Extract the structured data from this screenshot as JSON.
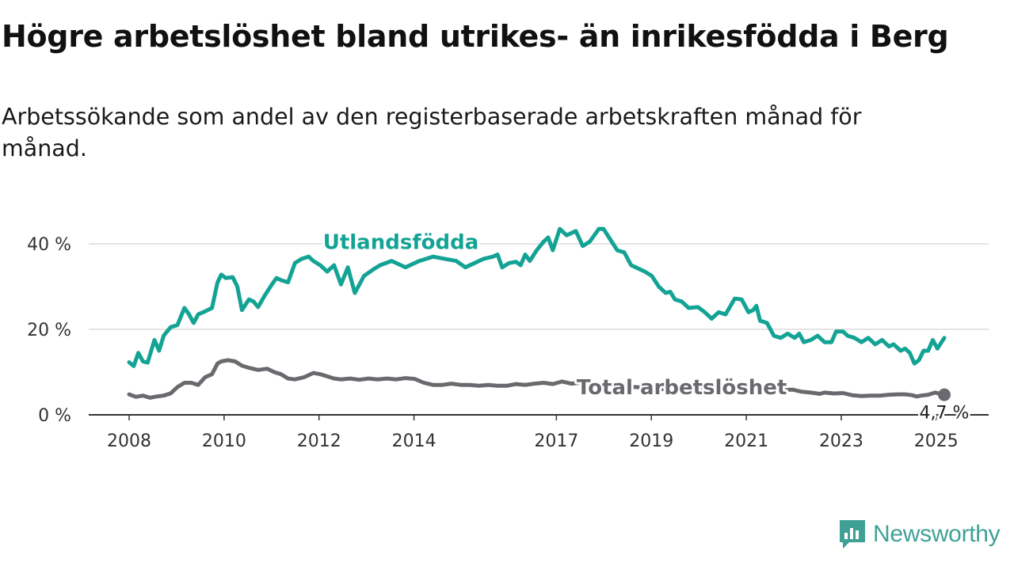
{
  "title": "Högre arbetslöshet bland utrikes- än inrikesfödda i Berg",
  "subtitle": "Arbetssökande som andel av den registerbaserade arbetskraften månad för månad.",
  "brand": {
    "name": "Newsworthy",
    "color": "#3fa196",
    "icon": "newsworthy-logo-icon"
  },
  "chart_data": {
    "type": "line",
    "x_unit": "year (monthly observations)",
    "xlim": [
      2008.0,
      2025.17
    ],
    "ylim": [
      0,
      45
    ],
    "y_ticks": [
      {
        "value": 0,
        "label": "0 %"
      },
      {
        "value": 20,
        "label": "20 %"
      },
      {
        "value": 40,
        "label": "40 %"
      }
    ],
    "x_ticks": [
      {
        "value": 2008,
        "label": "2008"
      },
      {
        "value": 2010,
        "label": "2010"
      },
      {
        "value": 2012,
        "label": "2012"
      },
      {
        "value": 2014,
        "label": "2014"
      },
      {
        "value": 2017,
        "label": "2017"
      },
      {
        "value": 2019,
        "label": "2019"
      },
      {
        "value": 2021,
        "label": "2021"
      },
      {
        "value": 2023,
        "label": "2023"
      },
      {
        "value": 2025,
        "label": "2025"
      }
    ],
    "grid": "horizontal",
    "series": [
      {
        "name": "Utlandsfödda",
        "color": "#13a394",
        "points": [
          [
            2008.0,
            12.3
          ],
          [
            2008.1,
            11.4
          ],
          [
            2008.2,
            14.5
          ],
          [
            2008.3,
            12.5
          ],
          [
            2008.4,
            12.2
          ],
          [
            2008.55,
            17.5
          ],
          [
            2008.65,
            15.0
          ],
          [
            2008.75,
            18.5
          ],
          [
            2008.9,
            20.5
          ],
          [
            2009.05,
            21.0
          ],
          [
            2009.2,
            25.0
          ],
          [
            2009.3,
            23.5
          ],
          [
            2009.4,
            21.5
          ],
          [
            2009.5,
            23.5
          ],
          [
            2009.65,
            24.2
          ],
          [
            2009.8,
            25.0
          ],
          [
            2009.92,
            31.0
          ],
          [
            2010.0,
            32.8
          ],
          [
            2010.1,
            32.0
          ],
          [
            2010.25,
            32.2
          ],
          [
            2010.35,
            30.0
          ],
          [
            2010.45,
            24.5
          ],
          [
            2010.6,
            27.0
          ],
          [
            2010.7,
            26.5
          ],
          [
            2010.8,
            25.2
          ],
          [
            2010.95,
            28.0
          ],
          [
            2011.1,
            30.5
          ],
          [
            2011.2,
            32.0
          ],
          [
            2011.3,
            31.5
          ],
          [
            2011.45,
            31.0
          ],
          [
            2011.6,
            35.5
          ],
          [
            2011.75,
            36.5
          ],
          [
            2011.9,
            37.0
          ],
          [
            2012.0,
            36.0
          ],
          [
            2012.15,
            35.0
          ],
          [
            2012.3,
            33.5
          ],
          [
            2012.45,
            35.0
          ],
          [
            2012.6,
            30.5
          ],
          [
            2012.75,
            34.5
          ],
          [
            2012.9,
            28.5
          ],
          [
            2013.1,
            32.5
          ],
          [
            2013.3,
            34.0
          ],
          [
            2013.45,
            35.0
          ],
          [
            2013.7,
            36.0
          ],
          [
            2014.0,
            34.5
          ],
          [
            2014.3,
            36.0
          ],
          [
            2014.6,
            37.0
          ],
          [
            2014.85,
            36.5
          ],
          [
            2015.1,
            36.0
          ],
          [
            2015.3,
            34.5
          ],
          [
            2015.5,
            35.5
          ],
          [
            2015.7,
            36.5
          ],
          [
            2015.9,
            37.0
          ],
          [
            2016.0,
            37.5
          ],
          [
            2016.1,
            34.5
          ],
          [
            2016.25,
            35.5
          ],
          [
            2016.4,
            35.8
          ],
          [
            2016.5,
            35.0
          ],
          [
            2016.6,
            37.5
          ],
          [
            2016.7,
            36.0
          ],
          [
            2016.85,
            38.5
          ],
          [
            2017.0,
            40.5
          ],
          [
            2017.1,
            41.5
          ],
          [
            2017.2,
            38.5
          ],
          [
            2017.35,
            43.5
          ],
          [
            2017.5,
            42.0
          ],
          [
            2017.6,
            42.5
          ],
          [
            2017.7,
            43.0
          ],
          [
            2017.85,
            39.5
          ],
          [
            2018.0,
            40.5
          ],
          [
            2018.2,
            43.5
          ],
          [
            2018.3,
            43.5
          ],
          [
            2018.45,
            41.0
          ],
          [
            2018.6,
            38.5
          ],
          [
            2018.75,
            38.0
          ],
          [
            2018.9,
            35.0
          ],
          [
            2019.0,
            34.5
          ],
          [
            2019.2,
            33.5
          ],
          [
            2019.35,
            32.5
          ],
          [
            2019.5,
            30.0
          ],
          [
            2019.65,
            28.5
          ],
          [
            2019.75,
            28.8
          ],
          [
            2019.85,
            27.0
          ],
          [
            2020.0,
            26.5
          ],
          [
            2020.15,
            25.0
          ],
          [
            2020.35,
            25.2
          ],
          [
            2020.5,
            24.0
          ],
          [
            2020.65,
            22.5
          ],
          [
            2020.8,
            24.0
          ],
          [
            2020.95,
            23.5
          ],
          [
            2021.15,
            27.2
          ],
          [
            2021.3,
            27.0
          ],
          [
            2021.45,
            24.0
          ],
          [
            2021.55,
            24.5
          ],
          [
            2021.62,
            25.5
          ],
          [
            2021.7,
            22.0
          ],
          [
            2021.85,
            21.5
          ],
          [
            2022.0,
            18.5
          ],
          [
            2022.15,
            18.0
          ],
          [
            2022.3,
            19.0
          ],
          [
            2022.45,
            18.0
          ],
          [
            2022.55,
            19.0
          ],
          [
            2022.65,
            17.0
          ],
          [
            2022.8,
            17.5
          ],
          [
            2022.95,
            18.5
          ],
          [
            2023.1,
            17.0
          ],
          [
            2023.25,
            17.0
          ],
          [
            2023.35,
            19.5
          ],
          [
            2023.5,
            19.5
          ],
          [
            2023.6,
            18.5
          ],
          [
            2023.75,
            18.0
          ],
          [
            2023.9,
            17.0
          ],
          [
            2024.05,
            18.0
          ],
          [
            2024.2,
            16.5
          ],
          [
            2024.35,
            17.5
          ],
          [
            2024.5,
            16.0
          ],
          [
            2024.6,
            16.5
          ],
          [
            2024.75,
            15.0
          ],
          [
            2024.85,
            15.5
          ],
          [
            2024.95,
            14.5
          ],
          [
            2025.05,
            12.0
          ],
          [
            2025.15,
            12.8
          ],
          [
            2025.25,
            15.0
          ],
          [
            2025.35,
            15.0
          ],
          [
            2025.45,
            17.5
          ],
          [
            2025.55,
            15.5
          ],
          [
            2025.7,
            18.0
          ]
        ]
      },
      {
        "name": "Total arbetslöshet",
        "color": "#6b696e",
        "points": [
          [
            2008.0,
            4.8
          ],
          [
            2008.15,
            4.2
          ],
          [
            2008.3,
            4.5
          ],
          [
            2008.45,
            4.0
          ],
          [
            2008.6,
            4.3
          ],
          [
            2008.75,
            4.5
          ],
          [
            2008.9,
            5.0
          ],
          [
            2009.05,
            6.5
          ],
          [
            2009.2,
            7.5
          ],
          [
            2009.35,
            7.5
          ],
          [
            2009.5,
            7.0
          ],
          [
            2009.65,
            8.8
          ],
          [
            2009.8,
            9.5
          ],
          [
            2009.92,
            12.0
          ],
          [
            2010.0,
            12.5
          ],
          [
            2010.15,
            12.8
          ],
          [
            2010.3,
            12.5
          ],
          [
            2010.45,
            11.5
          ],
          [
            2010.6,
            11.0
          ],
          [
            2010.8,
            10.5
          ],
          [
            2011.0,
            10.8
          ],
          [
            2011.15,
            10.0
          ],
          [
            2011.3,
            9.5
          ],
          [
            2011.45,
            8.5
          ],
          [
            2011.6,
            8.3
          ],
          [
            2011.8,
            8.8
          ],
          [
            2012.0,
            9.8
          ],
          [
            2012.15,
            9.5
          ],
          [
            2012.3,
            9.0
          ],
          [
            2012.45,
            8.5
          ],
          [
            2012.6,
            8.3
          ],
          [
            2012.8,
            8.5
          ],
          [
            2013.0,
            8.2
          ],
          [
            2013.2,
            8.5
          ],
          [
            2013.4,
            8.3
          ],
          [
            2013.6,
            8.5
          ],
          [
            2013.8,
            8.3
          ],
          [
            2014.0,
            8.6
          ],
          [
            2014.2,
            8.4
          ],
          [
            2014.4,
            7.5
          ],
          [
            2014.6,
            7.0
          ],
          [
            2014.8,
            7.0
          ],
          [
            2015.0,
            7.3
          ],
          [
            2015.2,
            7.0
          ],
          [
            2015.4,
            7.0
          ],
          [
            2015.6,
            6.8
          ],
          [
            2015.8,
            7.0
          ],
          [
            2016.0,
            6.8
          ],
          [
            2016.2,
            6.8
          ],
          [
            2016.4,
            7.2
          ],
          [
            2016.6,
            7.0
          ],
          [
            2016.8,
            7.3
          ],
          [
            2017.0,
            7.5
          ],
          [
            2017.2,
            7.2
          ],
          [
            2017.4,
            7.8
          ],
          [
            2017.6,
            7.3
          ],
          [
            2017.8,
            7.5
          ],
          [
            2018.0,
            7.5
          ],
          [
            2018.2,
            7.3
          ],
          [
            2018.4,
            7.0
          ],
          [
            2018.6,
            6.8
          ],
          [
            2018.8,
            6.5
          ],
          [
            2019.0,
            6.5
          ],
          [
            2019.2,
            6.3
          ],
          [
            2019.4,
            6.2
          ],
          [
            2019.6,
            6.0
          ],
          [
            2019.8,
            6.0
          ],
          [
            2020.0,
            6.0
          ],
          [
            2020.2,
            5.8
          ],
          [
            2020.4,
            5.8
          ],
          [
            2020.6,
            5.7
          ],
          [
            2020.8,
            5.6
          ],
          [
            2021.0,
            5.8
          ],
          [
            2021.2,
            5.9
          ],
          [
            2021.4,
            5.8
          ],
          [
            2021.6,
            5.7
          ],
          [
            2021.8,
            5.8
          ],
          [
            2022.0,
            5.6
          ],
          [
            2022.2,
            5.8
          ],
          [
            2022.4,
            5.9
          ],
          [
            2022.6,
            5.4
          ],
          [
            2022.8,
            5.2
          ],
          [
            2023.0,
            4.9
          ],
          [
            2023.1,
            5.2
          ],
          [
            2023.3,
            5.0
          ],
          [
            2023.5,
            5.1
          ],
          [
            2023.7,
            4.6
          ],
          [
            2023.9,
            4.4
          ],
          [
            2024.1,
            4.5
          ],
          [
            2024.3,
            4.5
          ],
          [
            2024.5,
            4.7
          ],
          [
            2024.7,
            4.8
          ],
          [
            2024.85,
            4.8
          ],
          [
            2025.0,
            4.6
          ],
          [
            2025.1,
            4.3
          ],
          [
            2025.2,
            4.5
          ],
          [
            2025.35,
            4.7
          ],
          [
            2025.5,
            5.2
          ],
          [
            2025.7,
            4.7
          ]
        ]
      }
    ],
    "annotations": {
      "series_labels": [
        {
          "series": 0,
          "text": "Utlandsfödda",
          "at": [
            2013.9,
            38.8
          ]
        },
        {
          "series": 1,
          "text": "Total arbetslöshet",
          "at": [
            2020.0,
            4.8
          ]
        }
      ],
      "end_label": {
        "series": 1,
        "text": "4,7 %"
      }
    }
  }
}
